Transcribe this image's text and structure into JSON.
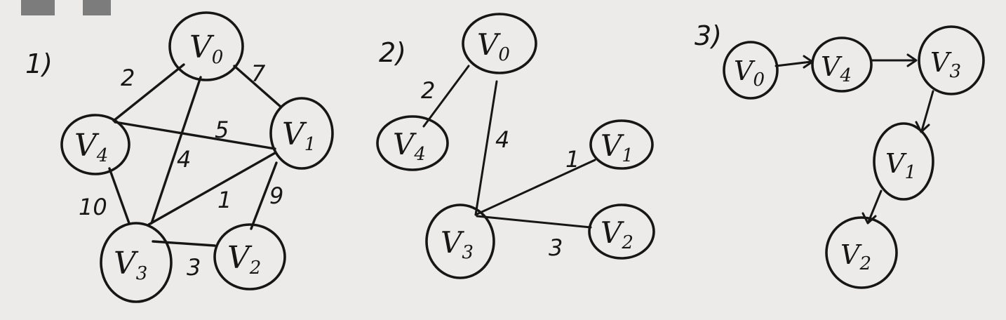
{
  "colors": {
    "paper": "#ecebea",
    "ink": "#161616"
  },
  "panels": [
    {
      "number": "1)",
      "nodes": [
        "V0",
        "V1",
        "V2",
        "V3",
        "V4"
      ],
      "edges": [
        {
          "from": "V0",
          "to": "V4",
          "weight": "2"
        },
        {
          "from": "V0",
          "to": "V1",
          "weight": "7"
        },
        {
          "from": "V4",
          "to": "V1",
          "weight": "5"
        },
        {
          "from": "V0",
          "to": "V3",
          "weight": "4"
        },
        {
          "from": "V3",
          "to": "V1",
          "weight": "1"
        },
        {
          "from": "V1",
          "to": "V2",
          "weight": "9"
        },
        {
          "from": "V4",
          "to": "V3",
          "weight": "10"
        },
        {
          "from": "V3",
          "to": "V2",
          "weight": "3"
        }
      ]
    },
    {
      "number": "2)",
      "nodes": [
        "V0",
        "V4",
        "V1",
        "V3",
        "V2"
      ],
      "edges": [
        {
          "from": "V0",
          "to": "V4",
          "weight": "2"
        },
        {
          "from": "V0",
          "to": "V3",
          "weight": "4"
        },
        {
          "from": "V3",
          "to": "V1",
          "weight": "1"
        },
        {
          "from": "V3",
          "to": "V2",
          "weight": "3"
        }
      ]
    },
    {
      "number": "3)",
      "nodes": [
        "V0",
        "V4",
        "V3",
        "V1",
        "V2"
      ],
      "edges": [
        {
          "from": "V0",
          "to": "V4",
          "directed": true
        },
        {
          "from": "V4",
          "to": "V3",
          "directed": true
        },
        {
          "from": "V3",
          "to": "V1",
          "directed": true
        },
        {
          "from": "V1",
          "to": "V2",
          "directed": true
        }
      ]
    }
  ]
}
